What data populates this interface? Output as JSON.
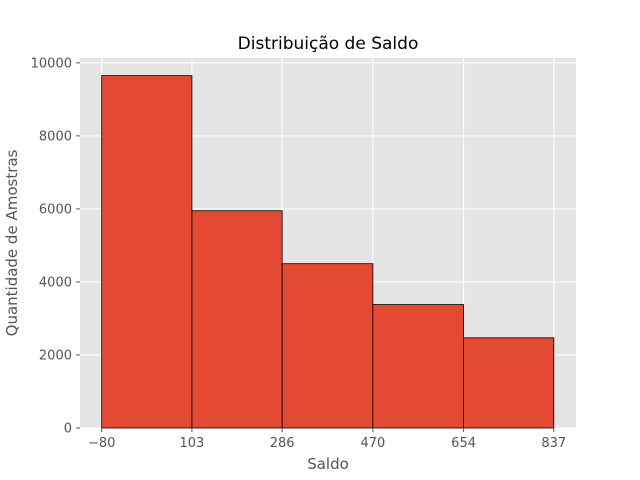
{
  "chart_data": {
    "type": "bar",
    "title": "Distribuição de Saldo",
    "xlabel": "Saldo",
    "ylabel": "Quantidade de Amostras",
    "x_ticks": [
      "−80",
      "103",
      "286",
      "470",
      "654",
      "837"
    ],
    "bin_edges": [
      -80,
      103,
      286,
      470,
      654,
      837
    ],
    "values": [
      9650,
      5950,
      4500,
      3380,
      2470
    ],
    "y_ticks": [
      0,
      2000,
      4000,
      6000,
      8000,
      10000
    ],
    "xlim": [
      -124,
      882
    ],
    "ylim": [
      0,
      10133
    ],
    "grid": true,
    "style": "ggplot"
  },
  "colors": {
    "bar_fill": "#E24A33",
    "bar_edge": "#000000",
    "plot_background": "#E5E5E5",
    "grid": "#FFFFFF",
    "tick_text": "#555555"
  }
}
